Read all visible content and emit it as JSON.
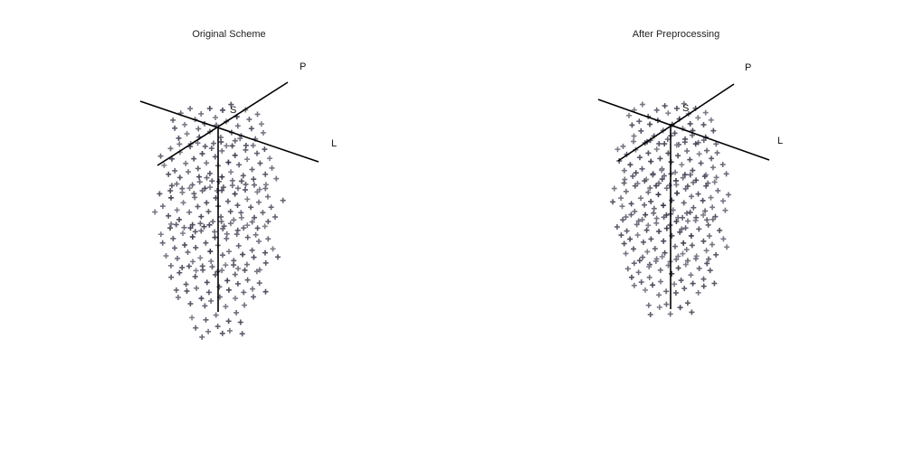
{
  "chart_data": [
    {
      "type": "scatter",
      "title": "Original Scheme",
      "marker": "plus",
      "axes": [
        {
          "name": "S-origin",
          "label": "S"
        },
        {
          "name": "P-axis",
          "label": "P"
        },
        {
          "name": "L-axis",
          "label": "L"
        }
      ],
      "basis": {
        "u": "P direction",
        "v": "L direction",
        "w": "vertical (down)"
      },
      "grid_u": [
        -4,
        -3,
        -2,
        -1,
        0,
        1,
        2,
        3,
        4
      ],
      "grid_v": [
        -4,
        -3,
        -2,
        -1,
        0,
        1,
        2,
        3,
        4
      ],
      "grid_w": [
        0,
        1,
        2,
        3
      ],
      "grid_step": 0.5,
      "ranges": {
        "u": [
          -4,
          4
        ],
        "v": [
          -4,
          4
        ],
        "w": [
          0,
          5.5
        ]
      },
      "color_scale": {
        "min": "#b8b8c0",
        "max": "#1e1a30"
      }
    },
    {
      "type": "scatter",
      "title": "After Preprocessing",
      "marker": "plus",
      "axes": [
        {
          "name": "S-origin",
          "label": "S"
        },
        {
          "name": "P-axis",
          "label": "P"
        },
        {
          "name": "L-axis",
          "label": "L"
        }
      ],
      "basis": {
        "u": "P direction",
        "v": "L direction",
        "w": "vertical (down)"
      },
      "grid_u": [
        -4,
        -3,
        -2,
        -1,
        0,
        1,
        2,
        3,
        4
      ],
      "grid_v": [
        -4,
        -3,
        -2,
        -1,
        0,
        1,
        2,
        3,
        4
      ],
      "grid_w": [
        0,
        1,
        2,
        3
      ],
      "grid_step": 0.5,
      "ranges": {
        "u": [
          -4,
          4
        ],
        "v": [
          -4,
          4
        ],
        "w": [
          0,
          5.5
        ]
      },
      "color_scale": {
        "min": "#b8b8c0",
        "max": "#1e1a30"
      }
    }
  ]
}
